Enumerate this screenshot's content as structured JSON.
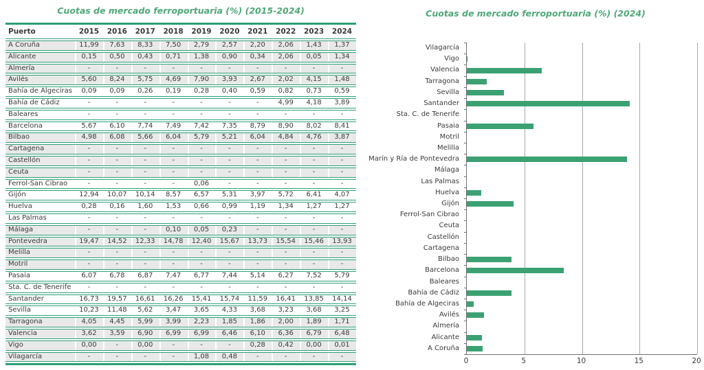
{
  "colors": {
    "title_green": "#4FA878",
    "table_line_green": "#2E9E74",
    "bar_green": "#3BA173",
    "row_shade": "#E9E9E9",
    "text": "#3A3A3A",
    "gridline": "#A9A9A9",
    "axis": "#6E6E6E"
  },
  "chart_data": [
    {
      "type": "table",
      "title": "Cuotas de mercado ferroportuaria (%) (2015-2024)",
      "columns": [
        "Puerto",
        "2015",
        "2016",
        "2017",
        "2018",
        "2019",
        "2020",
        "2021",
        "2022",
        "2023",
        "2024"
      ],
      "rows": [
        {
          "name": "A Coruña",
          "values": [
            "11,99",
            "7,63",
            "8,33",
            "7,50",
            "2,79",
            "2,57",
            "2,20",
            "2,06",
            "1,43",
            "1,37"
          ]
        },
        {
          "name": "Alicante",
          "values": [
            "0,15",
            "0,50",
            "0,43",
            "0,71",
            "1,38",
            "0,90",
            "0,34",
            "2,06",
            "0,05",
            "1,34"
          ]
        },
        {
          "name": "Almería",
          "values": [
            "-",
            "-",
            "-",
            "-",
            "-",
            "-",
            "-",
            "-",
            "-",
            "-"
          ]
        },
        {
          "name": "Avilés",
          "values": [
            "5,60",
            "8,24",
            "5,75",
            "4,69",
            "7,90",
            "3,93",
            "2,67",
            "2,02",
            "4,15",
            "1,48"
          ]
        },
        {
          "name": "Bahía de Algeciras",
          "values": [
            "0,09",
            "0,09",
            "0,26",
            "0,19",
            "0,28",
            "0,40",
            "0,59",
            "0,82",
            "0,73",
            "0,59"
          ]
        },
        {
          "name": "Bahía de Cádiz",
          "values": [
            "-",
            "-",
            "-",
            "-",
            "-",
            "-",
            "-",
            "4,99",
            "4,18",
            "3,89"
          ]
        },
        {
          "name": "Baleares",
          "values": [
            "-",
            "-",
            "-",
            "-",
            "-",
            "-",
            "-",
            "-",
            "-",
            "-"
          ]
        },
        {
          "name": "Barcelona",
          "values": [
            "5,67",
            "6,10",
            "7,74",
            "7,49",
            "7,42",
            "7,35",
            "8,79",
            "8,90",
            "8,02",
            "8,41"
          ]
        },
        {
          "name": "Bilbao",
          "values": [
            "4,98",
            "6,08",
            "5,66",
            "6,04",
            "5,79",
            "5,21",
            "6,04",
            "4,84",
            "4,76",
            "3,87"
          ]
        },
        {
          "name": "Cartagena",
          "values": [
            "-",
            "-",
            "-",
            "-",
            "-",
            "-",
            "-",
            "-",
            "-",
            "-"
          ]
        },
        {
          "name": "Castellón",
          "values": [
            "-",
            "-",
            "-",
            "-",
            "-",
            "-",
            "-",
            "-",
            "-",
            "-"
          ]
        },
        {
          "name": "Ceuta",
          "values": [
            "-",
            "-",
            "-",
            "-",
            "-",
            "-",
            "-",
            "-",
            "-",
            "-"
          ]
        },
        {
          "name": "Ferrol-San Cibrao",
          "values": [
            "-",
            "-",
            "-",
            "-",
            "0,06",
            "-",
            "-",
            "-",
            "-",
            "-"
          ]
        },
        {
          "name": "Gijón",
          "values": [
            "12,94",
            "10,07",
            "10,14",
            "8,57",
            "6,57",
            "5,31",
            "3,97",
            "5,72",
            "6,41",
            "4,07"
          ]
        },
        {
          "name": "Huelva",
          "values": [
            "0,28",
            "0,16",
            "1,60",
            "1,53",
            "0,66",
            "0,99",
            "1,19",
            "1,34",
            "1,27",
            "1,27"
          ]
        },
        {
          "name": "Las Palmas",
          "values": [
            "-",
            "-",
            "-",
            "-",
            "-",
            "-",
            "-",
            "-",
            "-",
            "-"
          ]
        },
        {
          "name": "Málaga",
          "values": [
            "-",
            "-",
            "-",
            "0,10",
            "0,05",
            "0,23",
            "-",
            "-",
            "-",
            "-"
          ]
        },
        {
          "name": "Pontevedra",
          "values": [
            "19,47",
            "14,52",
            "12,33",
            "14,78",
            "12,40",
            "15,67",
            "13,73",
            "15,54",
            "15,46",
            "13,93"
          ]
        },
        {
          "name": "Melilla",
          "values": [
            "-",
            "-",
            "-",
            "-",
            "-",
            "-",
            "-",
            "-",
            "-",
            "-"
          ]
        },
        {
          "name": "Motril",
          "values": [
            "-",
            "-",
            "-",
            "-",
            "-",
            "-",
            "-",
            "-",
            "-",
            "-"
          ]
        },
        {
          "name": "Pasaia",
          "values": [
            "6,07",
            "6,78",
            "6,87",
            "7,47",
            "6,77",
            "7,44",
            "5,14",
            "6,27",
            "7,52",
            "5,79"
          ]
        },
        {
          "name": "Sta. C. de Tenerife",
          "values": [
            "-",
            "-",
            "-",
            "-",
            "-",
            "-",
            "-",
            "-",
            "-",
            "-"
          ]
        },
        {
          "name": "Santander",
          "values": [
            "16,73",
            "19,57",
            "16,61",
            "16,26",
            "15,41",
            "15,74",
            "11,59",
            "16,41",
            "13,85",
            "14,14"
          ]
        },
        {
          "name": "Sevilla",
          "values": [
            "10,23",
            "11,48",
            "5,62",
            "3,47",
            "3,65",
            "4,33",
            "3,68",
            "3,23",
            "3,68",
            "3,25"
          ]
        },
        {
          "name": "Tarragona",
          "values": [
            "4,05",
            "4,45",
            "5,99",
            "3,99",
            "2,23",
            "1,85",
            "1,86",
            "2,00",
            "1,89",
            "1,71"
          ]
        },
        {
          "name": "Valencia",
          "values": [
            "3,62",
            "3,59",
            "6,90",
            "6,99",
            "6,99",
            "6,46",
            "6,10",
            "6,36",
            "6,79",
            "6,48"
          ]
        },
        {
          "name": "Vigo",
          "values": [
            "0,00",
            "-",
            "0,00",
            "-",
            "-",
            "-",
            "0,28",
            "0,42",
            "0,00",
            "0,01"
          ]
        },
        {
          "name": "Vilagarcía",
          "values": [
            "-",
            "-",
            "-",
            "-",
            "1,08",
            "0,48",
            "-",
            "-",
            "-",
            "-"
          ]
        }
      ]
    },
    {
      "type": "bar",
      "orientation": "horizontal",
      "title": "Cuotas de mercado ferroportuaria (%) (2024)",
      "categories": [
        "Vilagarcía",
        "Vigo",
        "Valencia",
        "Tarragona",
        "Sevilla",
        "Santander",
        "Sta. C. de Tenerife",
        "Pasaia",
        "Motril",
        "Melilla",
        "Marín y Ría de Pontevedra",
        "Málaga",
        "Las Palmas",
        "Huelva",
        "Gijón",
        "Ferrol-San Cibrao",
        "Ceuta",
        "Castellón",
        "Cartagena",
        "Bilbao",
        "Barcelona",
        "Baleares",
        "Bahía de Cádiz",
        "Bahía de Algeciras",
        "Avilés",
        "Almería",
        "Alicante",
        "A Coruña"
      ],
      "values": [
        0,
        0.01,
        6.48,
        1.71,
        3.25,
        14.14,
        0,
        5.79,
        0,
        0,
        13.93,
        0,
        0,
        1.27,
        4.07,
        0,
        0,
        0,
        0,
        3.87,
        8.41,
        0,
        3.89,
        0.59,
        1.48,
        0,
        1.34,
        1.37
      ],
      "xlim": [
        0,
        20
      ],
      "xticks": [
        0,
        5,
        10,
        15,
        20
      ],
      "grid": "vertical",
      "legend": "none"
    }
  ]
}
